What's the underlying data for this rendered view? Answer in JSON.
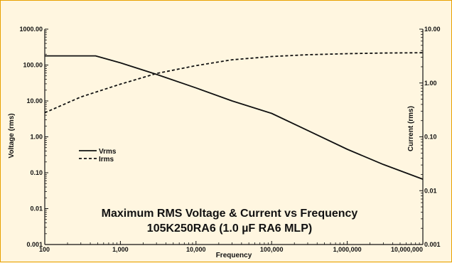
{
  "chart_data": {
    "type": "line",
    "title": "Maximum RMS Voltage & Current vs Frequency",
    "subtitle": "105K250RA6 (1.0 µF RA6 MLP)",
    "xlabel": "Frequency",
    "ylabel_left": "Voltage (rms)",
    "ylabel_right": "Current (rms)",
    "x_scale": "log",
    "y_scale": "log",
    "xlim": [
      100,
      10000000
    ],
    "ylim_left": [
      0.001,
      1000
    ],
    "ylim_right": [
      0.001,
      10
    ],
    "x_ticks": [
      "100",
      "1,000",
      "10,000",
      "100,000",
      "1,000,000",
      "10,000,000"
    ],
    "y_ticks_left": [
      "0.001",
      "0.01",
      "0.10",
      "1.00",
      "10.00",
      "100.00",
      "1000.00"
    ],
    "y_ticks_right": [
      "0.001",
      "0.01",
      "0.10",
      "1.00",
      "10.00"
    ],
    "grid": false,
    "legend": "center-left",
    "series": [
      {
        "name": "Vrms",
        "axis": "left",
        "style": "solid",
        "x": [
          100,
          300,
          470,
          1000,
          3000,
          10000,
          30000,
          100000,
          300000,
          1000000,
          3000000,
          10000000
        ],
        "y": [
          180,
          180,
          180,
          115,
          55,
          23,
          10,
          4.5,
          1.5,
          0.45,
          0.17,
          0.066
        ]
      },
      {
        "name": "Irms",
        "axis": "right",
        "style": "dashed",
        "x": [
          100,
          300,
          1000,
          3000,
          10000,
          30000,
          100000,
          300000,
          1000000,
          3000000,
          10000000
        ],
        "y": [
          0.28,
          0.55,
          0.95,
          1.5,
          2.1,
          2.7,
          3.1,
          3.35,
          3.5,
          3.6,
          3.65
        ]
      }
    ]
  }
}
